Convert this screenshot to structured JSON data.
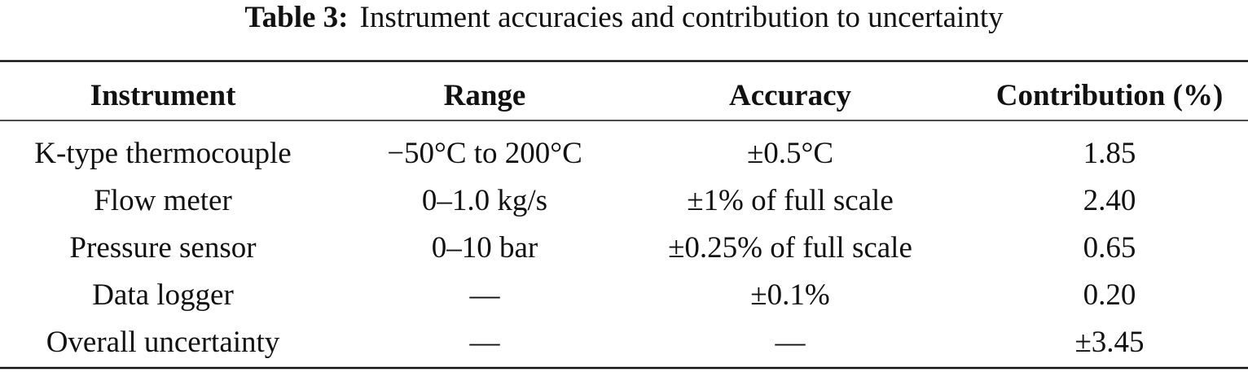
{
  "table": {
    "caption": {
      "label": "Table 3:",
      "text": "Instrument accuracies and contribution to uncertainty"
    },
    "header": [
      "Instrument",
      "Range",
      "Accuracy",
      "Contribution (%)"
    ],
    "rows": [
      [
        "K-type thermocouple",
        "−50°C to 200°C",
        "±0.5°C",
        "1.85"
      ],
      [
        "Flow meter",
        "0–1.0 kg/s",
        "±1% of full scale",
        "2.40"
      ],
      [
        "Pressure sensor",
        "0–10 bar",
        "±0.25% of full scale",
        "0.65"
      ],
      [
        "Data logger",
        "—",
        "±0.1%",
        "0.20"
      ],
      [
        "Overall uncertainty",
        "—",
        "—",
        "±3.45"
      ]
    ]
  }
}
